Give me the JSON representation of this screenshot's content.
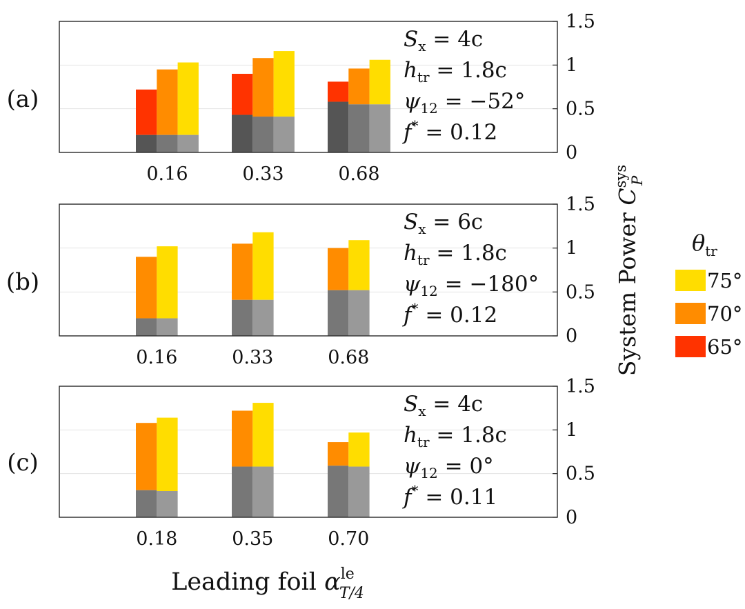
{
  "chart_data": {
    "type": "stacked-bar",
    "ylabel": "System Power",
    "ylabel_symbol": "C",
    "ylabel_sub": "P",
    "ylabel_sup": "sys",
    "xlabel": "Leading foil",
    "xlabel_symbol": "α",
    "xlabel_sup": "le",
    "xlabel_sub": "T/4",
    "ylim": [
      0,
      1.5
    ],
    "yticks": [
      "0",
      "0.5",
      "1",
      "1.5"
    ],
    "yticks_values": [
      0,
      0.5,
      1,
      1.5
    ],
    "legend": {
      "title_symbol": "θ",
      "title_sub": "tr",
      "entries": [
        {
          "label": "75°",
          "color": "#FFDD00"
        },
        {
          "label": "70°",
          "color": "#FF8C00"
        },
        {
          "label": "65°",
          "color": "#FF3300"
        }
      ]
    },
    "colors": {
      "c75": "#FFDD00",
      "c70": "#FF8C00",
      "c65": "#FF3300",
      "gray_dark": "#555555",
      "gray_mid": "#777777",
      "gray_light": "#999999"
    },
    "panels": [
      {
        "label": "(a)",
        "ann": [
          {
            "sym": "S",
            "sub": "x",
            "val": " = 4c"
          },
          {
            "sym": "h",
            "sub": "tr",
            "val": " = 1.8c"
          },
          {
            "sym": "ψ",
            "sub": "12",
            "val": " = −52°"
          },
          {
            "sym": "f",
            "sup": "*",
            "val": " = 0.12"
          }
        ],
        "categories": [
          "0.16",
          "0.33",
          "0.68"
        ],
        "bars": [
          [
            {
              "theta": "65°",
              "base": 0.2,
              "total": 0.72,
              "gray": "gray_dark"
            },
            {
              "theta": "70°",
              "base": 0.2,
              "total": 0.95,
              "gray": "gray_mid"
            },
            {
              "theta": "75°",
              "base": 0.2,
              "total": 1.03,
              "gray": "gray_light"
            }
          ],
          [
            {
              "theta": "65°",
              "base": 0.43,
              "total": 0.9,
              "gray": "gray_dark"
            },
            {
              "theta": "70°",
              "base": 0.41,
              "total": 1.08,
              "gray": "gray_mid"
            },
            {
              "theta": "75°",
              "base": 0.41,
              "total": 1.16,
              "gray": "gray_light"
            }
          ],
          [
            {
              "theta": "65°",
              "base": 0.58,
              "total": 0.81,
              "gray": "gray_dark"
            },
            {
              "theta": "70°",
              "base": 0.55,
              "total": 0.96,
              "gray": "gray_mid"
            },
            {
              "theta": "75°",
              "base": 0.55,
              "total": 1.06,
              "gray": "gray_light"
            }
          ]
        ]
      },
      {
        "label": "(b)",
        "ann": [
          {
            "sym": "S",
            "sub": "x",
            "val": " = 6c"
          },
          {
            "sym": "h",
            "sub": "tr",
            "val": " = 1.8c"
          },
          {
            "sym": "ψ",
            "sub": "12",
            "val": " = −180°"
          },
          {
            "sym": "f",
            "sup": "*",
            "val": " = 0.12"
          }
        ],
        "categories": [
          "0.16",
          "0.33",
          "0.68"
        ],
        "bars": [
          [
            {
              "theta": "70°",
              "base": 0.2,
              "total": 0.9,
              "gray": "gray_mid"
            },
            {
              "theta": "75°",
              "base": 0.2,
              "total": 1.02,
              "gray": "gray_light"
            }
          ],
          [
            {
              "theta": "70°",
              "base": 0.41,
              "total": 1.05,
              "gray": "gray_mid"
            },
            {
              "theta": "75°",
              "base": 0.41,
              "total": 1.18,
              "gray": "gray_light"
            }
          ],
          [
            {
              "theta": "70°",
              "base": 0.52,
              "total": 1.0,
              "gray": "gray_mid"
            },
            {
              "theta": "75°",
              "base": 0.52,
              "total": 1.09,
              "gray": "gray_light"
            }
          ]
        ]
      },
      {
        "label": "(c)",
        "ann": [
          {
            "sym": "S",
            "sub": "x",
            "val": " = 4c"
          },
          {
            "sym": "h",
            "sub": "tr",
            "val": " = 1.8c"
          },
          {
            "sym": "ψ",
            "sub": "12",
            "val": " = 0°"
          },
          {
            "sym": "f",
            "sup": "*",
            "val": " = 0.11"
          }
        ],
        "categories": [
          "0.18",
          "0.35",
          "0.70"
        ],
        "bars": [
          [
            {
              "theta": "70°",
              "base": 0.31,
              "total": 1.08,
              "gray": "gray_mid"
            },
            {
              "theta": "75°",
              "base": 0.3,
              "total": 1.14,
              "gray": "gray_light"
            }
          ],
          [
            {
              "theta": "70°",
              "base": 0.58,
              "total": 1.22,
              "gray": "gray_mid"
            },
            {
              "theta": "75°",
              "base": 0.58,
              "total": 1.31,
              "gray": "gray_light"
            }
          ],
          [
            {
              "theta": "70°",
              "base": 0.59,
              "total": 0.86,
              "gray": "gray_mid"
            },
            {
              "theta": "75°",
              "base": 0.58,
              "total": 0.97,
              "gray": "gray_light"
            }
          ]
        ]
      }
    ]
  }
}
